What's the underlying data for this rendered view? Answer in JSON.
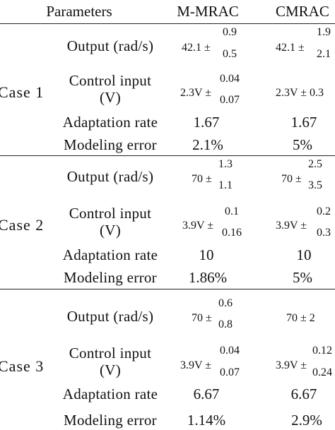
{
  "header": {
    "parameters": "Parameters",
    "col1": "M-MRAC",
    "col2": "CMRAC"
  },
  "cases": [
    {
      "label": "Case  1",
      "rows": [
        {
          "param": "Output  (rad/s)",
          "m_base": "42.1 ±",
          "m_up": "0.9",
          "m_dn": "0.5",
          "c_base": "42.1 ±",
          "c_up": "1.9",
          "c_dn": "2.1"
        },
        {
          "param_line1": "Control  input",
          "param_line2": "(V)",
          "m_base": "2.3V ±",
          "m_up": "0.04",
          "m_dn": "0.07",
          "c_plain": "2.3V ± 0.3"
        },
        {
          "param": "Adaptation rate",
          "m_plain": "1.67",
          "c_plain": "1.67"
        },
        {
          "param": "Modeling  error",
          "m_plain": "2.1%",
          "c_plain": "5%"
        }
      ]
    },
    {
      "label": "Case  2",
      "rows": [
        {
          "param": "Output  (rad/s)",
          "m_base": "70 ±",
          "m_up": "1.3",
          "m_dn": "1.1",
          "c_base": "70 ±",
          "c_up": "2.5",
          "c_dn": "3.5"
        },
        {
          "param_line1": "Control  input",
          "param_line2": "(V)",
          "m_base": "3.9V ±",
          "m_up": "0.1",
          "m_dn": "0.16",
          "c_base": "3.9V ±",
          "c_up": "0.2",
          "c_dn": "0.3"
        },
        {
          "param": "Adaptation rate",
          "m_plain": "10",
          "c_plain": "10"
        },
        {
          "param": "Modeling  error",
          "m_plain": "1.86%",
          "c_plain": "5%"
        }
      ]
    },
    {
      "label": "Case  3",
      "rows": [
        {
          "param": "Output  (rad/s)",
          "m_base": "70 ±",
          "m_up": "0.6",
          "m_dn": "0.8",
          "c_plain": "70 ± 2"
        },
        {
          "param_line1": "Control  input",
          "param_line2": "(V)",
          "m_base": "3.9V ±",
          "m_up": "0.04",
          "m_dn": "0.07",
          "c_base": "3.9V ±",
          "c_up": "0.12",
          "c_dn": "0.24"
        },
        {
          "param": "Adaptation rate",
          "m_plain": "6.67",
          "c_plain": "6.67"
        },
        {
          "param": "Modeling  error",
          "m_plain": "1.14%",
          "c_plain": "2.9%"
        }
      ]
    }
  ]
}
